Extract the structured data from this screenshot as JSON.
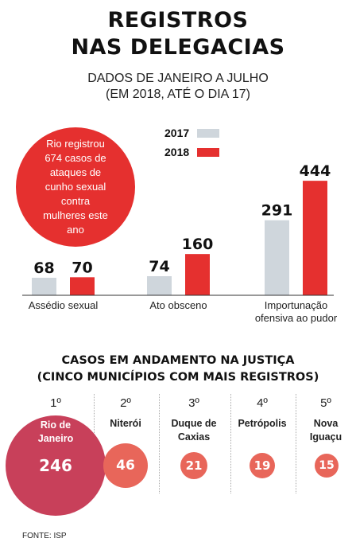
{
  "header": {
    "title_line1": "REGISTROS",
    "title_line2": "NAS DELEGACIAS",
    "subtitle_line1": "DADOS DE JANEIRO A JULHO",
    "subtitle_line2": "(EM 2018, ATÉ O DIA 17)"
  },
  "callout": {
    "text": "Rio registrou 674 casos de ataques de cunho sexual contra mulheres este ano"
  },
  "colors": {
    "y2017": "#cfd6dc",
    "y2018": "#e5302f",
    "bubble_main": "#c8405a",
    "bubble_other": "#e8665a"
  },
  "chart_data": [
    {
      "type": "bar",
      "categories": [
        "Assédio sexual",
        "Ato obsceno",
        "Importunação ofensiva ao pudor"
      ],
      "category_lines": [
        [
          "Assédio sexual"
        ],
        [
          "Ato obsceno"
        ],
        [
          "Importunação",
          "ofensiva ao pudor"
        ]
      ],
      "series": [
        {
          "name": "2017",
          "values": [
            68,
            74,
            291
          ]
        },
        {
          "name": "2018",
          "values": [
            70,
            160,
            444
          ]
        }
      ],
      "legend": "top-center",
      "grid": false
    },
    {
      "type": "bubble",
      "title": "CASOS EM ANDAMENTO NA JUSTIÇA (CINCO MUNICÍPIOS COM MAIS REGISTROS)",
      "categories": [
        "Rio de Janeiro",
        "Niterói",
        "Duque de Caxias",
        "Petrópolis",
        "Nova Iguaçu"
      ],
      "values": [
        246,
        46,
        21,
        19,
        15
      ]
    }
  ],
  "ranking": {
    "title_line1": "CASOS EM ANDAMENTO NA JUSTIÇA",
    "title_line2": "(CINCO MUNICÍPIOS COM MAIS REGISTROS)",
    "items": [
      {
        "rank": "1º",
        "city_line1": "Rio de",
        "city_line2": "Janeiro",
        "value": "246"
      },
      {
        "rank": "2º",
        "city_line1": "Niterói",
        "city_line2": "",
        "value": "46"
      },
      {
        "rank": "3º",
        "city_line1": "Duque de",
        "city_line2": "Caxias",
        "value": "21"
      },
      {
        "rank": "4º",
        "city_line1": "Petrópolis",
        "city_line2": "",
        "value": "19"
      },
      {
        "rank": "5º",
        "city_line1": "Nova",
        "city_line2": "Iguaçu",
        "value": "15"
      }
    ]
  },
  "source": "FONTE: ISP"
}
